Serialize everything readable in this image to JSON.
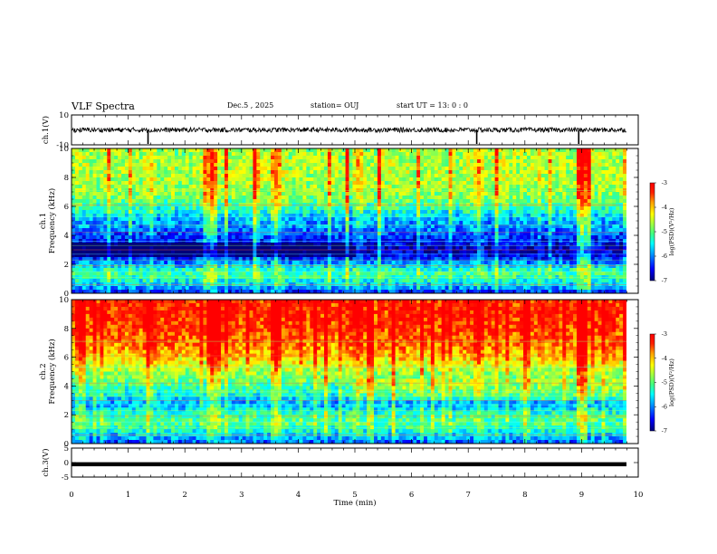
{
  "header": {
    "title": "VLF Spectra",
    "date": "Dec.5  , 2025",
    "station": "station= OUJ",
    "start": "start  UT  =   13: 0   : 0"
  },
  "colors": {
    "scale": [
      "#00007a",
      "#0000ff",
      "#00a0ff",
      "#00ffff",
      "#40ff80",
      "#a0ff40",
      "#ffff00",
      "#ffa000",
      "#ff2000",
      "#ff0000"
    ]
  },
  "chart_data": [
    {
      "type": "line",
      "ylabel": "ch.1(V)",
      "ylim": [
        -10,
        10
      ],
      "yticks": [
        "10",
        "-10"
      ],
      "xlim": [
        0,
        10
      ],
      "baseline": 0,
      "note_spikes_min": [
        1.35,
        7.15,
        8.95
      ]
    },
    {
      "type": "heatmap",
      "ylabel_top": "ch.1",
      "ylabel": "Frequency  (kHz)",
      "ylim": [
        0,
        10
      ],
      "yticks": [
        "0",
        "2",
        "4",
        "6",
        "8",
        "10"
      ],
      "xlim": [
        0,
        10
      ],
      "colorbar": {
        "label": "log(PSD)(V²/Hz)",
        "range": [
          -7,
          -3
        ],
        "ticks": [
          "-3",
          "-4",
          "-5",
          "-6",
          "-7"
        ]
      },
      "profile_kHz": [
        [
          0,
          -6.6
        ],
        [
          0.5,
          -5.8
        ],
        [
          1,
          -5.4
        ],
        [
          1.5,
          -5.2
        ],
        [
          2,
          -5.9
        ],
        [
          2.5,
          -6.6
        ],
        [
          3,
          -6.9
        ],
        [
          3.5,
          -6.6
        ],
        [
          4,
          -6.4
        ],
        [
          4.5,
          -6.1
        ],
        [
          5,
          -6.0
        ],
        [
          6,
          -5.3
        ],
        [
          7,
          -4.9
        ],
        [
          8,
          -4.8
        ],
        [
          9,
          -4.8
        ],
        [
          10,
          -4.9
        ]
      ]
    },
    {
      "type": "heatmap",
      "ylabel_top": "ch.2",
      "ylabel": "Frequency  (kHz)",
      "ylim": [
        0,
        10
      ],
      "yticks": [
        "0",
        "2",
        "4",
        "6",
        "8",
        "10"
      ],
      "xlim": [
        0,
        10
      ],
      "colorbar": {
        "label": "log(PSD)(V²/Hz)",
        "range": [
          -7,
          -3
        ],
        "ticks": [
          "-3",
          "-4",
          "-5",
          "-6",
          "-7"
        ]
      },
      "profile_kHz": [
        [
          0,
          -6.3
        ],
        [
          0.5,
          -5.8
        ],
        [
          1,
          -5.4
        ],
        [
          1.5,
          -5.1
        ],
        [
          2,
          -5.3
        ],
        [
          2.5,
          -5.8
        ],
        [
          3,
          -5.9
        ],
        [
          3.5,
          -5.4
        ],
        [
          4,
          -5.3
        ],
        [
          4.5,
          -5.0
        ],
        [
          5,
          -4.8
        ],
        [
          6,
          -4.2
        ],
        [
          7,
          -3.8
        ],
        [
          8,
          -3.6
        ],
        [
          9,
          -3.5
        ],
        [
          10,
          -3.5
        ]
      ]
    },
    {
      "type": "line",
      "ylabel": "ch.3(V)",
      "ylim": [
        -5,
        5
      ],
      "yticks": [
        "5",
        "0",
        "-5"
      ],
      "xlim": [
        0,
        10
      ],
      "baseline": -0.5
    }
  ],
  "xaxis": {
    "label": "Time  (min)",
    "ticks": [
      "0",
      "1",
      "2",
      "3",
      "4",
      "5",
      "6",
      "7",
      "8",
      "9",
      "10"
    ]
  }
}
